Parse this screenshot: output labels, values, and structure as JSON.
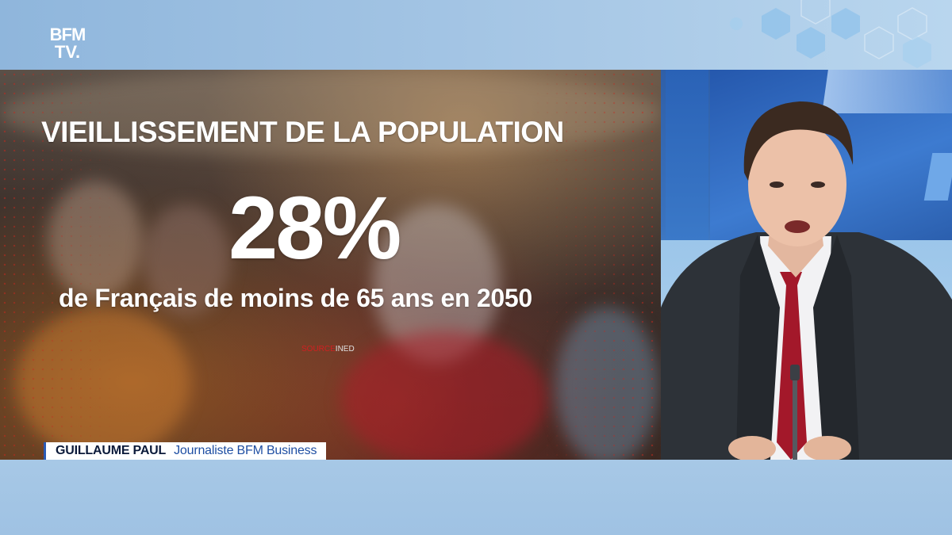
{
  "channel": {
    "logo_line1": "BFM",
    "logo_line2": "TV."
  },
  "graphic": {
    "headline": "VIEILLISSEMENT DE LA POPULATION",
    "big_number": "28%",
    "subtext": "de Français de moins de 65 ans en 2050",
    "source_label": "SOURCE",
    "source_value": "INED"
  },
  "lower_third": {
    "name": "GUILLAUME PAUL",
    "role": "Journaliste BFM Business"
  },
  "colors": {
    "accent_blue": "#2a5bb5",
    "source_red": "#d02020",
    "band_light_blue": "#a7c8e6",
    "tie_red": "#a3182a"
  },
  "icons": {
    "logo": "bfmtv-logo"
  }
}
